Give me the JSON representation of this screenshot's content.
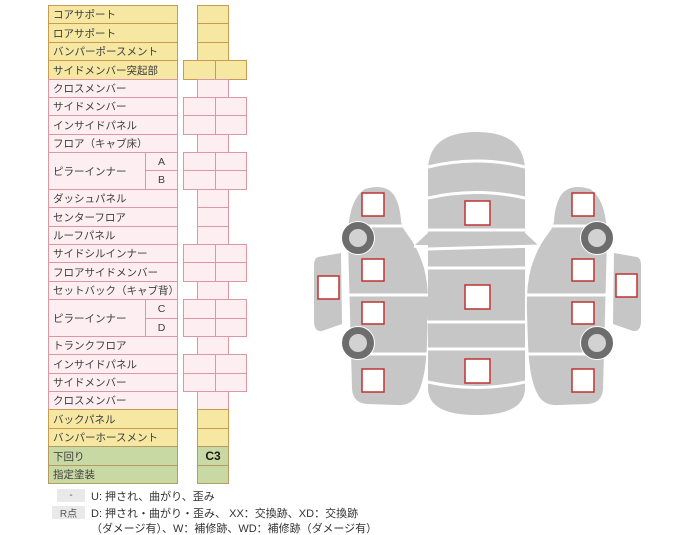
{
  "table": {
    "rows": [
      {
        "label": "コアサポート",
        "color": "yellow",
        "cell": "single"
      },
      {
        "label": "ロアサポート",
        "color": "yellow",
        "cell": "single"
      },
      {
        "label": "バンパーポースメント",
        "color": "yellow",
        "cell": "single"
      },
      {
        "label": "サイドメンバー突起部",
        "color": "yellow",
        "cell": "double"
      },
      {
        "label": "クロスメンバー",
        "color": "pink",
        "cell": "single"
      },
      {
        "label": "サイドメンバー",
        "color": "pink",
        "cell": "double"
      },
      {
        "label": "インサイドパネル",
        "color": "pink",
        "cell": "double"
      },
      {
        "label": "フロア（キャブ床）",
        "color": "pink",
        "cell": "single"
      },
      {
        "label": "ピラーインナー",
        "color": "pink",
        "cell": "double",
        "sub": [
          "A",
          "B"
        ]
      },
      {
        "label": "ダッシュパネル",
        "color": "pink",
        "cell": "single"
      },
      {
        "label": "センターフロア",
        "color": "pink",
        "cell": "single"
      },
      {
        "label": "ルーフパネル",
        "color": "pink",
        "cell": "single"
      },
      {
        "label": "サイドシルインナー",
        "color": "pink",
        "cell": "double"
      },
      {
        "label": "フロアサイドメンバー",
        "color": "pink",
        "cell": "double"
      },
      {
        "label": "セットバック（キャブ背）",
        "color": "pink",
        "cell": "single"
      },
      {
        "label": "ピラーインナー",
        "color": "pink",
        "cell": "double",
        "sub": [
          "C",
          "D"
        ]
      },
      {
        "label": "トランクフロア",
        "color": "pink",
        "cell": "single"
      },
      {
        "label": "インサイドパネル",
        "color": "pink",
        "cell": "double"
      },
      {
        "label": "サイドメンバー",
        "color": "pink",
        "cell": "double"
      },
      {
        "label": "クロスメンバー",
        "color": "pink",
        "cell": "single"
      },
      {
        "label": "バックパネル",
        "color": "yellow",
        "cell": "single"
      },
      {
        "label": "バンパーホースメント",
        "color": "yellow",
        "cell": "single"
      },
      {
        "label": "下回り",
        "color": "green",
        "cell": "single",
        "value": "C3"
      },
      {
        "label": "指定塗装",
        "color": "green",
        "cell": "single"
      }
    ]
  },
  "legend": {
    "rows": [
      {
        "chip": "-",
        "text": "U: 押され、曲がり、歪み"
      },
      {
        "chip": "R点",
        "text": "D: 押され・曲がり・歪み、 XX：交換跡、XD：交換跡"
      },
      {
        "chip": "",
        "text": "（ダメージ有）、W：補修跡、WD：補修跡（ダメージ有）"
      }
    ]
  },
  "diagram": {
    "views": [
      "left-side",
      "top",
      "right-side"
    ],
    "marker_counts": {
      "top_view": 3,
      "left_side": 5,
      "right_side": 5
    },
    "wheel_count": 4,
    "markers_empty": true
  },
  "colors": {
    "row_yellow": "#f6e7a2",
    "row_yellow_border": "#c99a52",
    "row_pink": "#fdeef2",
    "row_pink_border": "#dc98a2",
    "row_green": "#c9d9a4",
    "row_green_border": "#b59a62",
    "car_body": "#c6c6c6",
    "marker_border": "#bf3333",
    "wheel_ring": "#6d6d6d",
    "wheel_center": "#d2d2d2",
    "legend_chip_bg": "#e9e9e9"
  }
}
